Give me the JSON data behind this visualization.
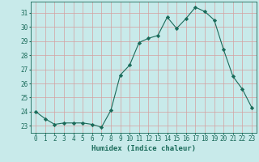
{
  "x": [
    0,
    1,
    2,
    3,
    4,
    5,
    6,
    7,
    8,
    9,
    10,
    11,
    12,
    13,
    14,
    15,
    16,
    17,
    18,
    19,
    20,
    21,
    22,
    23
  ],
  "y": [
    24.0,
    23.5,
    23.1,
    23.2,
    23.2,
    23.2,
    23.1,
    22.9,
    24.1,
    26.6,
    27.3,
    28.9,
    29.2,
    29.4,
    30.7,
    29.9,
    30.6,
    31.4,
    31.1,
    30.5,
    28.4,
    26.5,
    25.6,
    24.3
  ],
  "line_color": "#1a6b5a",
  "marker": "D",
  "marker_size": 2.2,
  "bg_color": "#c8eaea",
  "grid_color": "#d4a0a0",
  "xlabel": "Humidex (Indice chaleur)",
  "ylim": [
    22.5,
    31.8
  ],
  "xlim": [
    -0.5,
    23.5
  ],
  "yticks": [
    23,
    24,
    25,
    26,
    27,
    28,
    29,
    30,
    31
  ],
  "xticks": [
    0,
    1,
    2,
    3,
    4,
    5,
    6,
    7,
    8,
    9,
    10,
    11,
    12,
    13,
    14,
    15,
    16,
    17,
    18,
    19,
    20,
    21,
    22,
    23
  ],
  "font_color": "#1a6b5a",
  "xlabel_fontsize": 6.5,
  "tick_fontsize": 5.5
}
